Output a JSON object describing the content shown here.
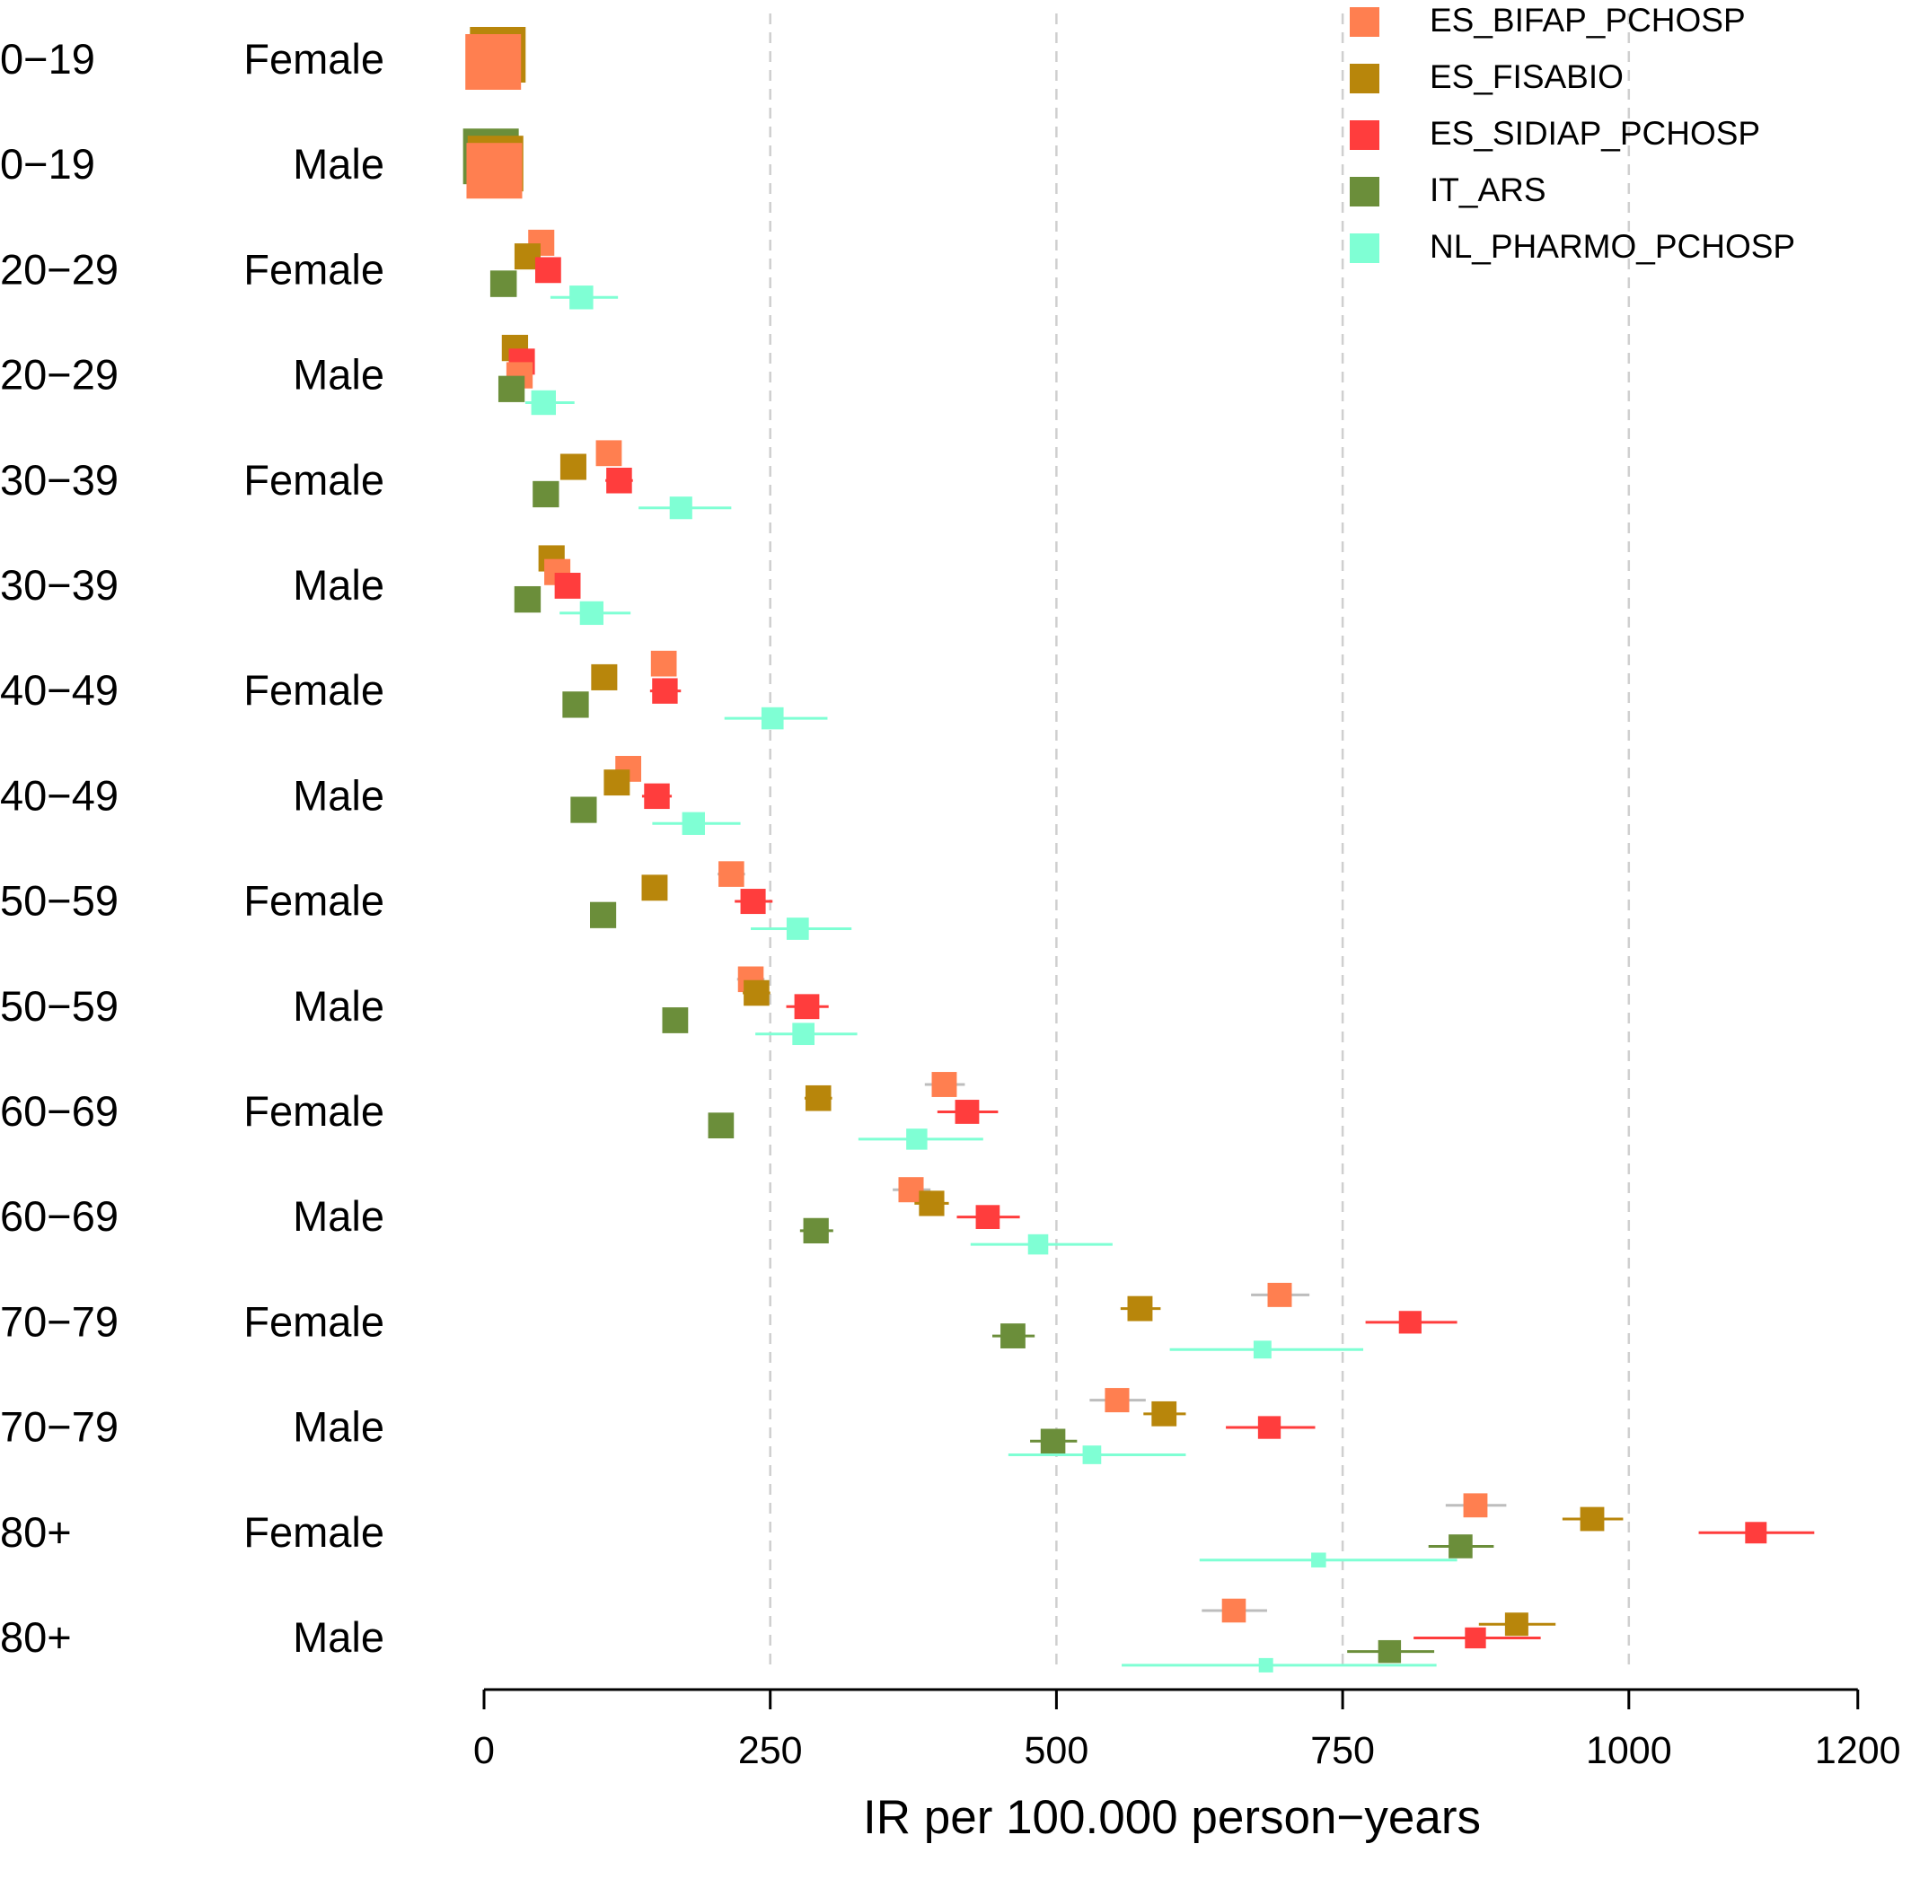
{
  "chart_data": {
    "type": "forest",
    "xlabel": "IR per 100.000 person−years",
    "x_ticks": [
      0,
      250,
      500,
      750,
      1000,
      1200
    ],
    "x_tick_labels": [
      "0",
      "250",
      "500",
      "750",
      "1000",
      "1200"
    ],
    "xlim": [
      0,
      1200
    ],
    "vertical_reference_lines": [
      250,
      500,
      750,
      1000
    ],
    "legend_position": "top-right",
    "series": [
      {
        "name": "ES_BIFAP_PCHOSP",
        "color": "#FF7F50"
      },
      {
        "name": "ES_FISABIO",
        "color": "#B8860B"
      },
      {
        "name": "ES_SIDIAP_PCHOSP",
        "color": "#FF3D3D"
      },
      {
        "name": "IT_ARS",
        "color": "#6B8E3A"
      },
      {
        "name": "NL_PHARMO_PCHOSP",
        "color": "#7FFFD4"
      }
    ],
    "rows": [
      {
        "age": "0−19",
        "sex": "Female",
        "points": [
          {
            "series": "ES_FISABIO",
            "ir": 12,
            "lo": 8,
            "hi": 16,
            "size": "large"
          },
          {
            "series": "ES_BIFAP_PCHOSP",
            "ir": 8,
            "lo": 5,
            "hi": 11,
            "size": "large"
          }
        ]
      },
      {
        "age": "0−19",
        "sex": "Male",
        "points": [
          {
            "series": "IT_ARS",
            "ir": 6,
            "lo": 4,
            "hi": 8,
            "size": "large"
          },
          {
            "series": "ES_FISABIO",
            "ir": 10,
            "lo": 7,
            "hi": 13,
            "size": "large"
          },
          {
            "series": "ES_BIFAP_PCHOSP",
            "ir": 9,
            "lo": 6,
            "hi": 12,
            "size": "large"
          }
        ]
      },
      {
        "age": "20−29",
        "sex": "Female",
        "points": [
          {
            "series": "ES_BIFAP_PCHOSP",
            "ir": 50,
            "lo": 42,
            "hi": 58
          },
          {
            "series": "ES_FISABIO",
            "ir": 38,
            "lo": 30,
            "hi": 46
          },
          {
            "series": "ES_SIDIAP_PCHOSP",
            "ir": 56,
            "lo": 46,
            "hi": 66
          },
          {
            "series": "IT_ARS",
            "ir": 17,
            "lo": 13,
            "hi": 21
          },
          {
            "series": "NL_PHARMO_PCHOSP",
            "ir": 85,
            "lo": 58,
            "hi": 117
          }
        ]
      },
      {
        "age": "20−29",
        "sex": "Male",
        "points": [
          {
            "series": "ES_FISABIO",
            "ir": 27,
            "lo": 21,
            "hi": 33
          },
          {
            "series": "ES_SIDIAP_PCHOSP",
            "ir": 33,
            "lo": 25,
            "hi": 41
          },
          {
            "series": "ES_BIFAP_PCHOSP",
            "ir": 31,
            "lo": 25,
            "hi": 37
          },
          {
            "series": "IT_ARS",
            "ir": 24,
            "lo": 18,
            "hi": 30
          },
          {
            "series": "NL_PHARMO_PCHOSP",
            "ir": 52,
            "lo": 36,
            "hi": 79
          }
        ]
      },
      {
        "age": "30−39",
        "sex": "Female",
        "points": [
          {
            "series": "ES_BIFAP_PCHOSP",
            "ir": 109,
            "lo": 99,
            "hi": 119
          },
          {
            "series": "ES_FISABIO",
            "ir": 78,
            "lo": 70,
            "hi": 86
          },
          {
            "series": "ES_SIDIAP_PCHOSP",
            "ir": 118,
            "lo": 106,
            "hi": 130
          },
          {
            "series": "IT_ARS",
            "ir": 54,
            "lo": 48,
            "hi": 60
          },
          {
            "series": "NL_PHARMO_PCHOSP",
            "ir": 172,
            "lo": 135,
            "hi": 216
          }
        ]
      },
      {
        "age": "30−39",
        "sex": "Male",
        "points": [
          {
            "series": "ES_FISABIO",
            "ir": 59,
            "lo": 52,
            "hi": 66
          },
          {
            "series": "ES_BIFAP_PCHOSP",
            "ir": 64,
            "lo": 56,
            "hi": 72
          },
          {
            "series": "ES_SIDIAP_PCHOSP",
            "ir": 73,
            "lo": 64,
            "hi": 83
          },
          {
            "series": "IT_ARS",
            "ir": 38,
            "lo": 33,
            "hi": 43
          },
          {
            "series": "NL_PHARMO_PCHOSP",
            "ir": 94,
            "lo": 66,
            "hi": 128
          }
        ]
      },
      {
        "age": "40−49",
        "sex": "Female",
        "points": [
          {
            "series": "ES_BIFAP_PCHOSP",
            "ir": 157,
            "lo": 146,
            "hi": 168
          },
          {
            "series": "ES_FISABIO",
            "ir": 105,
            "lo": 97,
            "hi": 113
          },
          {
            "series": "ES_SIDIAP_PCHOSP",
            "ir": 158,
            "lo": 145,
            "hi": 172
          },
          {
            "series": "IT_ARS",
            "ir": 80,
            "lo": 74,
            "hi": 86
          },
          {
            "series": "NL_PHARMO_PCHOSP",
            "ir": 252,
            "lo": 210,
            "hi": 300
          }
        ]
      },
      {
        "age": "40−49",
        "sex": "Male",
        "points": [
          {
            "series": "ES_BIFAP_PCHOSP",
            "ir": 126,
            "lo": 116,
            "hi": 136
          },
          {
            "series": "ES_FISABIO",
            "ir": 116,
            "lo": 107,
            "hi": 125
          },
          {
            "series": "ES_SIDIAP_PCHOSP",
            "ir": 151,
            "lo": 138,
            "hi": 164
          },
          {
            "series": "IT_ARS",
            "ir": 87,
            "lo": 80,
            "hi": 94
          },
          {
            "series": "NL_PHARMO_PCHOSP",
            "ir": 183,
            "lo": 147,
            "hi": 224
          }
        ]
      },
      {
        "age": "50−59",
        "sex": "Female",
        "points": [
          {
            "series": "ES_BIFAP_PCHOSP",
            "ir": 216,
            "lo": 204,
            "hi": 228
          },
          {
            "series": "ES_FISABIO",
            "ir": 149,
            "lo": 140,
            "hi": 158
          },
          {
            "series": "ES_SIDIAP_PCHOSP",
            "ir": 235,
            "lo": 219,
            "hi": 252
          },
          {
            "series": "IT_ARS",
            "ir": 104,
            "lo": 97,
            "hi": 111
          },
          {
            "series": "NL_PHARMO_PCHOSP",
            "ir": 274,
            "lo": 233,
            "hi": 321
          }
        ]
      },
      {
        "age": "50−59",
        "sex": "Male",
        "points": [
          {
            "series": "ES_BIFAP_PCHOSP",
            "ir": 233,
            "lo": 221,
            "hi": 245
          },
          {
            "series": "ES_FISABIO",
            "ir": 238,
            "lo": 226,
            "hi": 250
          },
          {
            "series": "ES_SIDIAP_PCHOSP",
            "ir": 282,
            "lo": 264,
            "hi": 301
          },
          {
            "series": "IT_ARS",
            "ir": 167,
            "lo": 157,
            "hi": 177
          },
          {
            "series": "NL_PHARMO_PCHOSP",
            "ir": 279,
            "lo": 237,
            "hi": 326
          }
        ]
      },
      {
        "age": "60−69",
        "sex": "Female",
        "points": [
          {
            "series": "ES_BIFAP_PCHOSP",
            "ir": 402,
            "lo": 385,
            "hi": 420
          },
          {
            "series": "ES_FISABIO",
            "ir": 292,
            "lo": 280,
            "hi": 304
          },
          {
            "series": "ES_SIDIAP_PCHOSP",
            "ir": 422,
            "lo": 396,
            "hi": 449
          },
          {
            "series": "IT_ARS",
            "ir": 207,
            "lo": 196,
            "hi": 218
          },
          {
            "series": "NL_PHARMO_PCHOSP",
            "ir": 378,
            "lo": 327,
            "hi": 436
          }
        ]
      },
      {
        "age": "60−69",
        "sex": "Male",
        "points": [
          {
            "series": "ES_BIFAP_PCHOSP",
            "ir": 373,
            "lo": 357,
            "hi": 390
          },
          {
            "series": "ES_FISABIO",
            "ir": 391,
            "lo": 376,
            "hi": 406
          },
          {
            "series": "ES_SIDIAP_PCHOSP",
            "ir": 440,
            "lo": 413,
            "hi": 468
          },
          {
            "series": "IT_ARS",
            "ir": 290,
            "lo": 276,
            "hi": 305
          },
          {
            "series": "NL_PHARMO_PCHOSP",
            "ir": 484,
            "lo": 425,
            "hi": 549
          }
        ]
      },
      {
        "age": "70−79",
        "sex": "Female",
        "points": [
          {
            "series": "ES_BIFAP_PCHOSP",
            "ir": 695,
            "lo": 670,
            "hi": 721
          },
          {
            "series": "ES_FISABIO",
            "ir": 573,
            "lo": 556,
            "hi": 591
          },
          {
            "series": "ES_SIDIAP_PCHOSP",
            "ir": 809,
            "lo": 770,
            "hi": 850
          },
          {
            "series": "IT_ARS",
            "ir": 462,
            "lo": 444,
            "hi": 481
          },
          {
            "series": "NL_PHARMO_PCHOSP",
            "ir": 680,
            "lo": 599,
            "hi": 768
          }
        ]
      },
      {
        "age": "70−79",
        "sex": "Male",
        "points": [
          {
            "series": "ES_BIFAP_PCHOSP",
            "ir": 553,
            "lo": 529,
            "hi": 578
          },
          {
            "series": "ES_FISABIO",
            "ir": 594,
            "lo": 576,
            "hi": 613
          },
          {
            "series": "ES_SIDIAP_PCHOSP",
            "ir": 686,
            "lo": 648,
            "hi": 726
          },
          {
            "series": "IT_ARS",
            "ir": 497,
            "lo": 477,
            "hi": 518
          },
          {
            "series": "NL_PHARMO_PCHOSP",
            "ir": 531,
            "lo": 458,
            "hi": 613
          }
        ]
      },
      {
        "age": "80+",
        "sex": "Female",
        "points": [
          {
            "series": "ES_BIFAP_PCHOSP",
            "ir": 866,
            "lo": 840,
            "hi": 893
          },
          {
            "series": "ES_FISABIO",
            "ir": 968,
            "lo": 942,
            "hi": 995
          },
          {
            "series": "ES_SIDIAP_PCHOSP",
            "ir": 1111,
            "lo": 1061,
            "hi": 1162
          },
          {
            "series": "IT_ARS",
            "ir": 853,
            "lo": 825,
            "hi": 882
          },
          {
            "series": "NL_PHARMO_PCHOSP",
            "ir": 729,
            "lo": 625,
            "hi": 850
          }
        ]
      },
      {
        "age": "80+",
        "sex": "Male",
        "points": [
          {
            "series": "ES_BIFAP_PCHOSP",
            "ir": 655,
            "lo": 627,
            "hi": 684
          },
          {
            "series": "ES_FISABIO",
            "ir": 902,
            "lo": 869,
            "hi": 936
          },
          {
            "series": "ES_SIDIAP_PCHOSP",
            "ir": 866,
            "lo": 812,
            "hi": 923
          },
          {
            "series": "IT_ARS",
            "ir": 791,
            "lo": 754,
            "hi": 830
          },
          {
            "series": "NL_PHARMO_PCHOSP",
            "ir": 683,
            "lo": 557,
            "hi": 832
          }
        ]
      }
    ]
  }
}
